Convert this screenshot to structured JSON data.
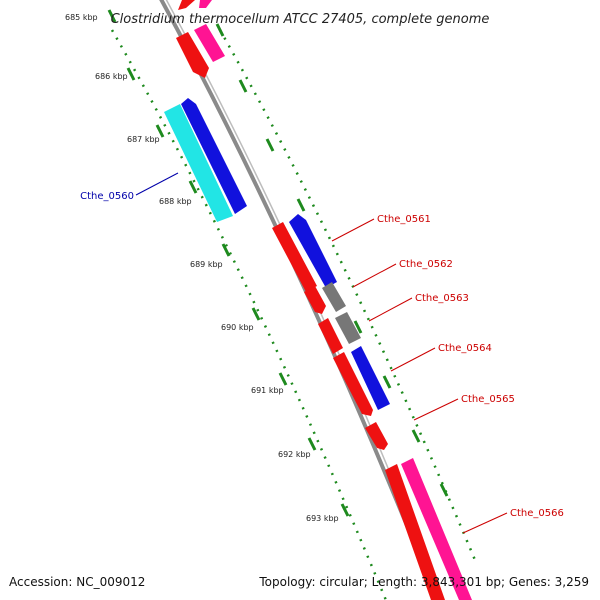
{
  "title": "Clostridium thermocellum ATCC 27405, complete genome",
  "footer": {
    "accession": "Accession: NC_009012",
    "topology": "Topology: circular; Length: 3,843,301 bp; Genes: 3,259"
  },
  "colors": {
    "backbone": "#8a8a8a",
    "tick": "#1e8a1e",
    "forward_gene": "#ee1111",
    "reverse_gene": "#1111dd",
    "pseudo_gene": "#777777",
    "pink_gene": "#ff1493",
    "cyan_gene": "#22e5e5",
    "label_blue": "#0000aa",
    "label_red": "#cc0000"
  },
  "scale": {
    "ticks": [
      "685 kbp",
      "686 kbp",
      "687 kbp",
      "688 kbp",
      "689 kbp",
      "690 kbp",
      "691 kbp",
      "692 kbp",
      "693 kbp"
    ]
  },
  "gene_labels": [
    {
      "name": "Cthe_0560",
      "color": "blue"
    },
    {
      "name": "Cthe_0561",
      "color": "red"
    },
    {
      "name": "Cthe_0562",
      "color": "red"
    },
    {
      "name": "Cthe_0563",
      "color": "red"
    },
    {
      "name": "Cthe_0564",
      "color": "red"
    },
    {
      "name": "Cthe_0565",
      "color": "red"
    },
    {
      "name": "Cthe_0566",
      "color": "red"
    }
  ]
}
